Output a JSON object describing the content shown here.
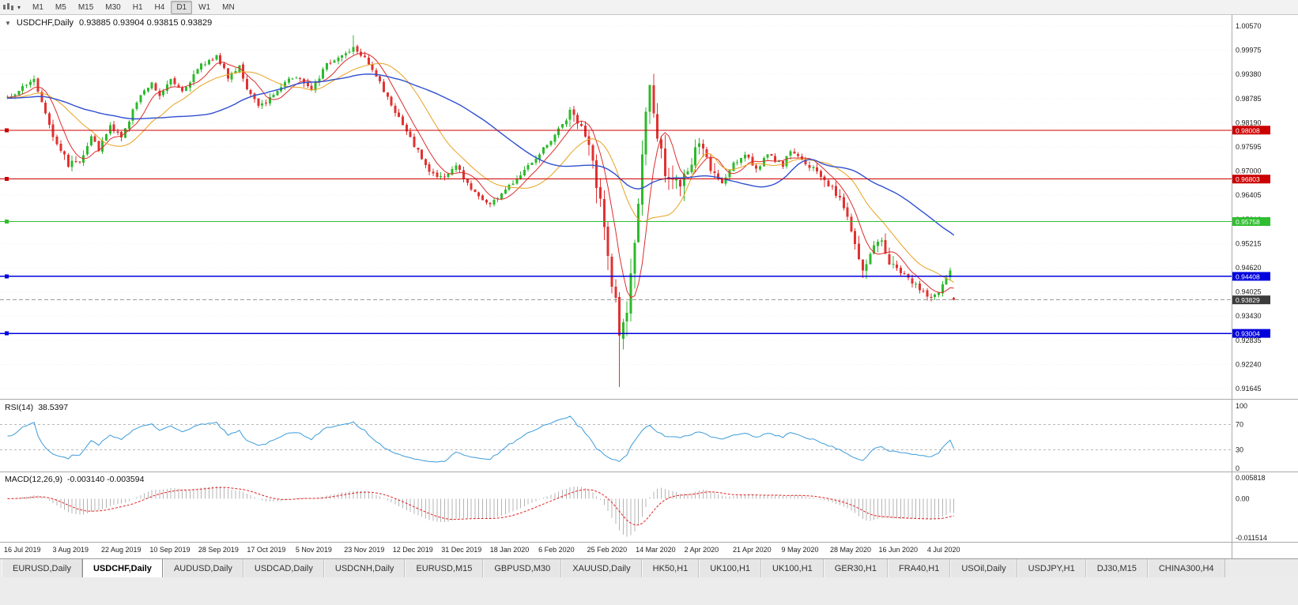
{
  "toolbar": {
    "timeframes": [
      {
        "label": "M1",
        "active": false
      },
      {
        "label": "M5",
        "active": false
      },
      {
        "label": "M15",
        "active": false
      },
      {
        "label": "M30",
        "active": false
      },
      {
        "label": "H1",
        "active": false
      },
      {
        "label": "H4",
        "active": false
      },
      {
        "label": "D1",
        "active": true
      },
      {
        "label": "W1",
        "active": false
      },
      {
        "label": "MN",
        "active": false
      }
    ]
  },
  "chart_data": {
    "type": "candlestick",
    "title": "USDCHF,Daily",
    "ohlc_text": "0.93885 0.93904 0.93815 0.93829",
    "last_candle": {
      "open": 0.93885,
      "high": 0.93904,
      "low": 0.93815,
      "close": 0.93829
    },
    "price_max": 1.0057,
    "price_min": 0.91645,
    "y_ticks": [
      "1.00570",
      "0.99975",
      "0.99380",
      "0.98785",
      "0.98190",
      "0.97595",
      "0.97000",
      "0.96405",
      "0.95810",
      "0.95215",
      "0.94620",
      "0.94025",
      "0.93430",
      "0.92835",
      "0.92240",
      "0.91645"
    ],
    "x_labels": [
      "16 Jul 2019",
      "3 Aug 2019",
      "22 Aug 2019",
      "10 Sep 2019",
      "28 Sep 2019",
      "17 Oct 2019",
      "5 Nov 2019",
      "23 Nov 2019",
      "12 Dec 2019",
      "31 Dec 2019",
      "18 Jan 2020",
      "6 Feb 2020",
      "25 Feb 2020",
      "14 Mar 2020",
      "2 Apr 2020",
      "21 Apr 2020",
      "9 May 2020",
      "28 May 2020",
      "16 Jun 2020",
      "4 Jul 2020"
    ],
    "h_lines": [
      {
        "price": 0.98008,
        "label": "0.98008",
        "color": "#cc0000",
        "width": 1
      },
      {
        "price": 0.96803,
        "label": "0.96803",
        "color": "#cc0000",
        "width": 1
      },
      {
        "price": 0.95758,
        "label": "0.95758",
        "color": "#2fbe2f",
        "width": 1.4
      },
      {
        "price": 0.94408,
        "label": "0.94408",
        "color": "#0000dd",
        "width": 1.6
      },
      {
        "price": 0.93004,
        "label": "0.93004",
        "color": "#0000dd",
        "width": 1.6
      }
    ],
    "current_price": {
      "value": 0.93829,
      "label": "0.93829",
      "badge_color": "#3c3c3c"
    },
    "colors": {
      "up": "#2db92d",
      "down": "#e03232",
      "ma_fast": "#dd2c2c",
      "ma_mid": "#e8a21e",
      "ma_slow": "#2f4fd0",
      "rsi": "#3d9bd9",
      "macd_hist": "#b4b4b4",
      "macd_signal": "#e02020",
      "grid": "#efefef",
      "separator": "#a9a9a9",
      "axis_text": "#1a1a1a"
    },
    "ma_periods": {
      "fast": 7,
      "mid": 18,
      "slow": 45
    },
    "num_candles": 250,
    "price_keyframes": [
      [
        0,
        0.988
      ],
      [
        7,
        0.9925
      ],
      [
        12,
        0.979
      ],
      [
        16,
        0.9718
      ],
      [
        19,
        0.9725
      ],
      [
        22,
        0.979
      ],
      [
        24,
        0.975
      ],
      [
        27,
        0.9812
      ],
      [
        30,
        0.978
      ],
      [
        33,
        0.985
      ],
      [
        36,
        0.99
      ],
      [
        38,
        0.992
      ],
      [
        40,
        0.9885
      ],
      [
        43,
        0.993
      ],
      [
        46,
        0.9898
      ],
      [
        51,
        0.996
      ],
      [
        55,
        0.9985
      ],
      [
        58,
        0.993
      ],
      [
        61,
        0.9962
      ],
      [
        63,
        0.99
      ],
      [
        66,
        0.9858
      ],
      [
        70,
        0.9888
      ],
      [
        73,
        0.9922
      ],
      [
        76,
        0.9932
      ],
      [
        80,
        0.9905
      ],
      [
        84,
        0.9962
      ],
      [
        88,
        0.9985
      ],
      [
        91,
        1.0005
      ],
      [
        94,
        0.9982
      ],
      [
        97,
        0.9935
      ],
      [
        100,
        0.9878
      ],
      [
        102,
        0.9848
      ],
      [
        105,
        0.9795
      ],
      [
        108,
        0.9748
      ],
      [
        111,
        0.9698
      ],
      [
        115,
        0.9682
      ],
      [
        118,
        0.9715
      ],
      [
        121,
        0.9668
      ],
      [
        124,
        0.9638
      ],
      [
        127,
        0.9618
      ],
      [
        130,
        0.9645
      ],
      [
        133,
        0.9672
      ],
      [
        136,
        0.9706
      ],
      [
        140,
        0.9744
      ],
      [
        143,
        0.9778
      ],
      [
        146,
        0.9815
      ],
      [
        148,
        0.9842
      ],
      [
        150,
        0.9828
      ],
      [
        153,
        0.9758
      ],
      [
        156,
        0.9618
      ],
      [
        158,
        0.9488
      ],
      [
        160,
        0.938
      ],
      [
        161,
        0.9295
      ],
      [
        163,
        0.9348
      ],
      [
        165,
        0.9528
      ],
      [
        166,
        0.9625
      ],
      [
        168,
        0.9828
      ],
      [
        169,
        0.9892
      ],
      [
        171,
        0.9798
      ],
      [
        173,
        0.9708
      ],
      [
        177,
        0.9652
      ],
      [
        179,
        0.9695
      ],
      [
        182,
        0.9775
      ],
      [
        185,
        0.9705
      ],
      [
        188,
        0.9668
      ],
      [
        191,
        0.9716
      ],
      [
        194,
        0.9744
      ],
      [
        197,
        0.9705
      ],
      [
        200,
        0.9738
      ],
      [
        204,
        0.9716
      ],
      [
        206,
        0.9748
      ],
      [
        209,
        0.9725
      ],
      [
        212,
        0.9705
      ],
      [
        217,
        0.9662
      ],
      [
        220,
        0.9615
      ],
      [
        223,
        0.9528
      ],
      [
        225,
        0.9448
      ],
      [
        227,
        0.9498
      ],
      [
        230,
        0.9525
      ],
      [
        232,
        0.9468
      ],
      [
        236,
        0.9448
      ],
      [
        239,
        0.9418
      ],
      [
        243,
        0.9388
      ],
      [
        245,
        0.9402
      ],
      [
        248,
        0.9455
      ],
      [
        249,
        0.9383
      ]
    ],
    "special_candles": [
      {
        "i": 91,
        "high": 1.0035
      },
      {
        "i": 161,
        "open": 0.939,
        "high": 0.9402,
        "low": 0.9168,
        "close": 0.9295
      },
      {
        "i": 169,
        "high": 0.9905
      },
      {
        "i": 248,
        "close": 0.9455,
        "high": 0.9462
      },
      {
        "i": 249,
        "open": 0.93885,
        "high": 0.93904,
        "low": 0.93815,
        "close": 0.93829
      }
    ],
    "rsi": {
      "label": "RSI(14)",
      "value": "38.5397",
      "period": 14,
      "ticks": [
        "100",
        "70",
        "30",
        "0"
      ],
      "tick_values": [
        100,
        70,
        30,
        0
      ],
      "levels": [
        70,
        30
      ],
      "scale_max": 100,
      "scale_min": 0
    },
    "macd": {
      "label": "MACD(12,26,9)",
      "values": "-0.003140 -0.003594",
      "fast": 12,
      "slow": 26,
      "signal": 9,
      "ticks": [
        "0.005818",
        "0.00",
        "-0.011514"
      ],
      "scale_max": 0.005818,
      "scale_min": -0.011514
    }
  },
  "tabs": [
    {
      "label": "EURUSD,Daily",
      "active": false
    },
    {
      "label": "USDCHF,Daily",
      "active": true
    },
    {
      "label": "AUDUSD,Daily",
      "active": false
    },
    {
      "label": "USDCAD,Daily",
      "active": false
    },
    {
      "label": "USDCNH,Daily",
      "active": false
    },
    {
      "label": "EURUSD,M15",
      "active": false
    },
    {
      "label": "GBPUSD,M30",
      "active": false
    },
    {
      "label": "XAUUSD,Daily",
      "active": false
    },
    {
      "label": "HK50,H1",
      "active": false
    },
    {
      "label": "UK100,H1",
      "active": false
    },
    {
      "label": "UK100,H1",
      "active": false
    },
    {
      "label": "GER30,H1",
      "active": false
    },
    {
      "label": "FRA40,H1",
      "active": false
    },
    {
      "label": "USOil,Daily",
      "active": false
    },
    {
      "label": "USDJPY,H1",
      "active": false
    },
    {
      "label": "DJ30,M15",
      "active": false
    },
    {
      "label": "CHINA300,H4",
      "active": false
    }
  ]
}
